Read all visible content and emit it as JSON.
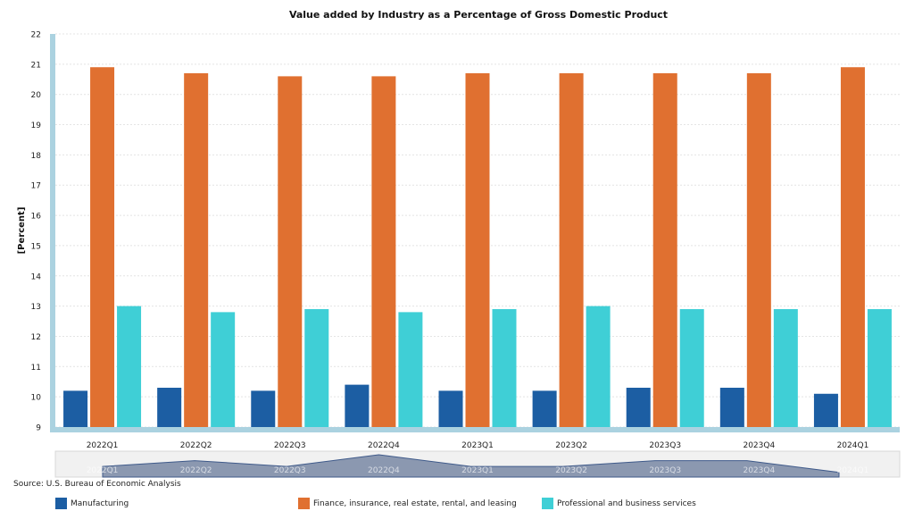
{
  "chart_data": {
    "type": "bar",
    "title": "Value added by Industry as a Percentage of Gross Domestic Product",
    "ylabel": "[Percent]",
    "xlabel": "",
    "ylim": [
      9,
      22
    ],
    "yticks": [
      9,
      10,
      11,
      12,
      13,
      14,
      15,
      16,
      17,
      18,
      19,
      20,
      21,
      22
    ],
    "categories": [
      "2022Q1",
      "2022Q2",
      "2022Q3",
      "2022Q4",
      "2023Q1",
      "2023Q2",
      "2023Q3",
      "2023Q4",
      "2024Q1"
    ],
    "series": [
      {
        "name": "Manufacturing",
        "color": "#1c5ea3",
        "values": [
          10.2,
          10.3,
          10.2,
          10.4,
          10.2,
          10.2,
          10.3,
          10.3,
          10.1
        ]
      },
      {
        "name": "Finance, insurance, real estate, rental, and leasing",
        "color": "#e07030",
        "values": [
          20.9,
          20.7,
          20.6,
          20.6,
          20.7,
          20.7,
          20.7,
          20.7,
          20.9
        ]
      },
      {
        "name": "Professional and business services",
        "color": "#3fcfd6",
        "values": [
          13.0,
          12.8,
          12.9,
          12.8,
          12.9,
          13.0,
          12.9,
          12.9,
          12.9
        ]
      }
    ],
    "grid": true,
    "legend_position": "bottom",
    "navigator": true
  },
  "source": "Source: U.S. Bureau of Economic Analysis"
}
